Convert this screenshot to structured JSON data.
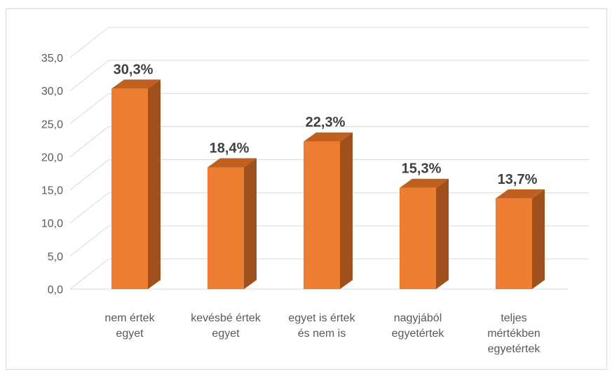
{
  "chart_data": {
    "type": "bar",
    "style": "3d-column",
    "categories": [
      [
        "nem értek",
        "egyet"
      ],
      [
        "kevésbé értek",
        "egyet"
      ],
      [
        "egyet is értek",
        "és nem is"
      ],
      [
        "nagyjából",
        "egyetértek"
      ],
      [
        "teljes",
        "mértékben",
        "egyetértek"
      ]
    ],
    "values": [
      30.3,
      18.4,
      22.3,
      15.3,
      13.7
    ],
    "data_labels": [
      "30,3%",
      "18,4%",
      "22,3%",
      "15,3%",
      "13,7%"
    ],
    "ylim": [
      0,
      35
    ],
    "yticks": [
      "0,0",
      "5,0",
      "10,0",
      "15,0",
      "20,0",
      "25,0",
      "30,0",
      "35,0"
    ],
    "grid": true,
    "legend": "none",
    "colors": {
      "bar_front": "#ED7D31",
      "bar_side": "#A0501C",
      "bar_top": "#C0601F",
      "grid": "#d9d9d9"
    }
  }
}
